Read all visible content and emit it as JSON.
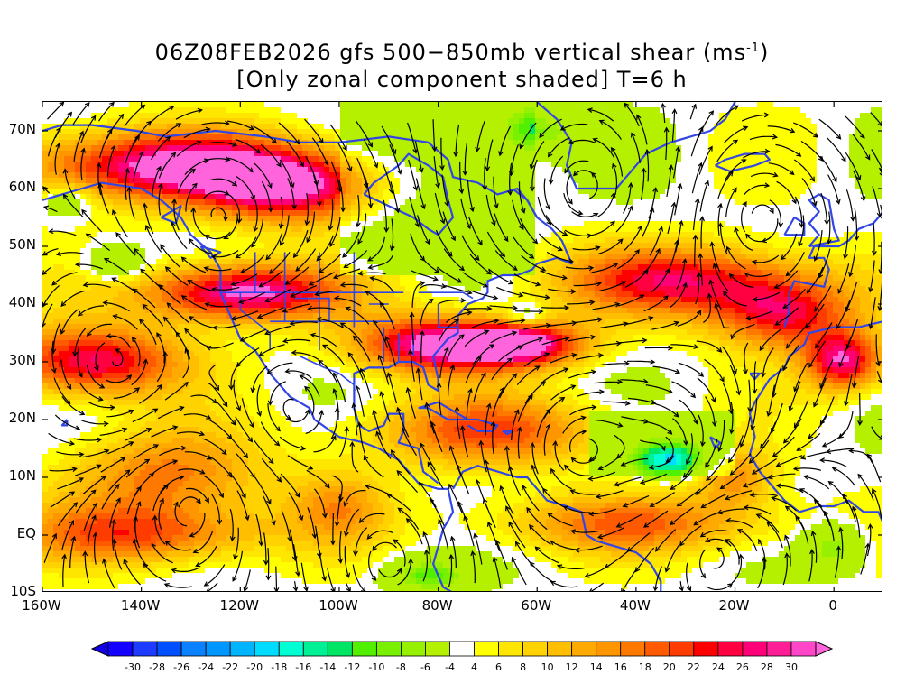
{
  "title": {
    "line1_prefix": "06Z08FEB2026 gfs 500−850mb vertical shear (ms",
    "line1_sup": "-1",
    "line1_suffix": ")",
    "line2": "[Only zonal component shaded] T=6 h"
  },
  "axes": {
    "y_labels": [
      "70N",
      "60N",
      "50N",
      "40N",
      "30N",
      "20N",
      "10N",
      "EQ",
      "10S"
    ],
    "y_values": [
      70,
      60,
      50,
      40,
      30,
      20,
      10,
      0,
      -10
    ],
    "x_labels": [
      "160W",
      "140W",
      "120W",
      "100W",
      "80W",
      "60W",
      "40W",
      "20W",
      "0"
    ],
    "x_values": [
      -160,
      -140,
      -120,
      -100,
      -80,
      -60,
      -40,
      -20,
      0
    ],
    "lon_range": [
      -160,
      10
    ],
    "lat_range": [
      -10,
      75
    ]
  },
  "colorbar": {
    "labels": [
      "-30",
      "-28",
      "-26",
      "-24",
      "-22",
      "-20",
      "-18",
      "-16",
      "-14",
      "-12",
      "-10",
      "-8",
      "-6",
      "-4",
      "4",
      "6",
      "8",
      "10",
      "12",
      "14",
      "16",
      "18",
      "20",
      "22",
      "24",
      "26",
      "28",
      "30"
    ],
    "colors": [
      "#1400ff",
      "#1e3cff",
      "#0050ff",
      "#0a82ff",
      "#0096ff",
      "#00b4ff",
      "#00dcff",
      "#00ffd2",
      "#00f096",
      "#00e664",
      "#50f000",
      "#78f000",
      "#96f000",
      "#b4f000",
      "#ffffff",
      "#ffff00",
      "#ffe600",
      "#ffd200",
      "#ffbe00",
      "#ffaa00",
      "#ff9600",
      "#ff7800",
      "#ff5a00",
      "#ff3c00",
      "#ff0000",
      "#ff0040",
      "#ff0078",
      "#ff1e96",
      "#ff46c8"
    ],
    "under_color": "#1400e6",
    "over_color": "#ff64dc"
  },
  "colors": {
    "coastline": "#3246e6",
    "streamline": "#000000"
  }
}
